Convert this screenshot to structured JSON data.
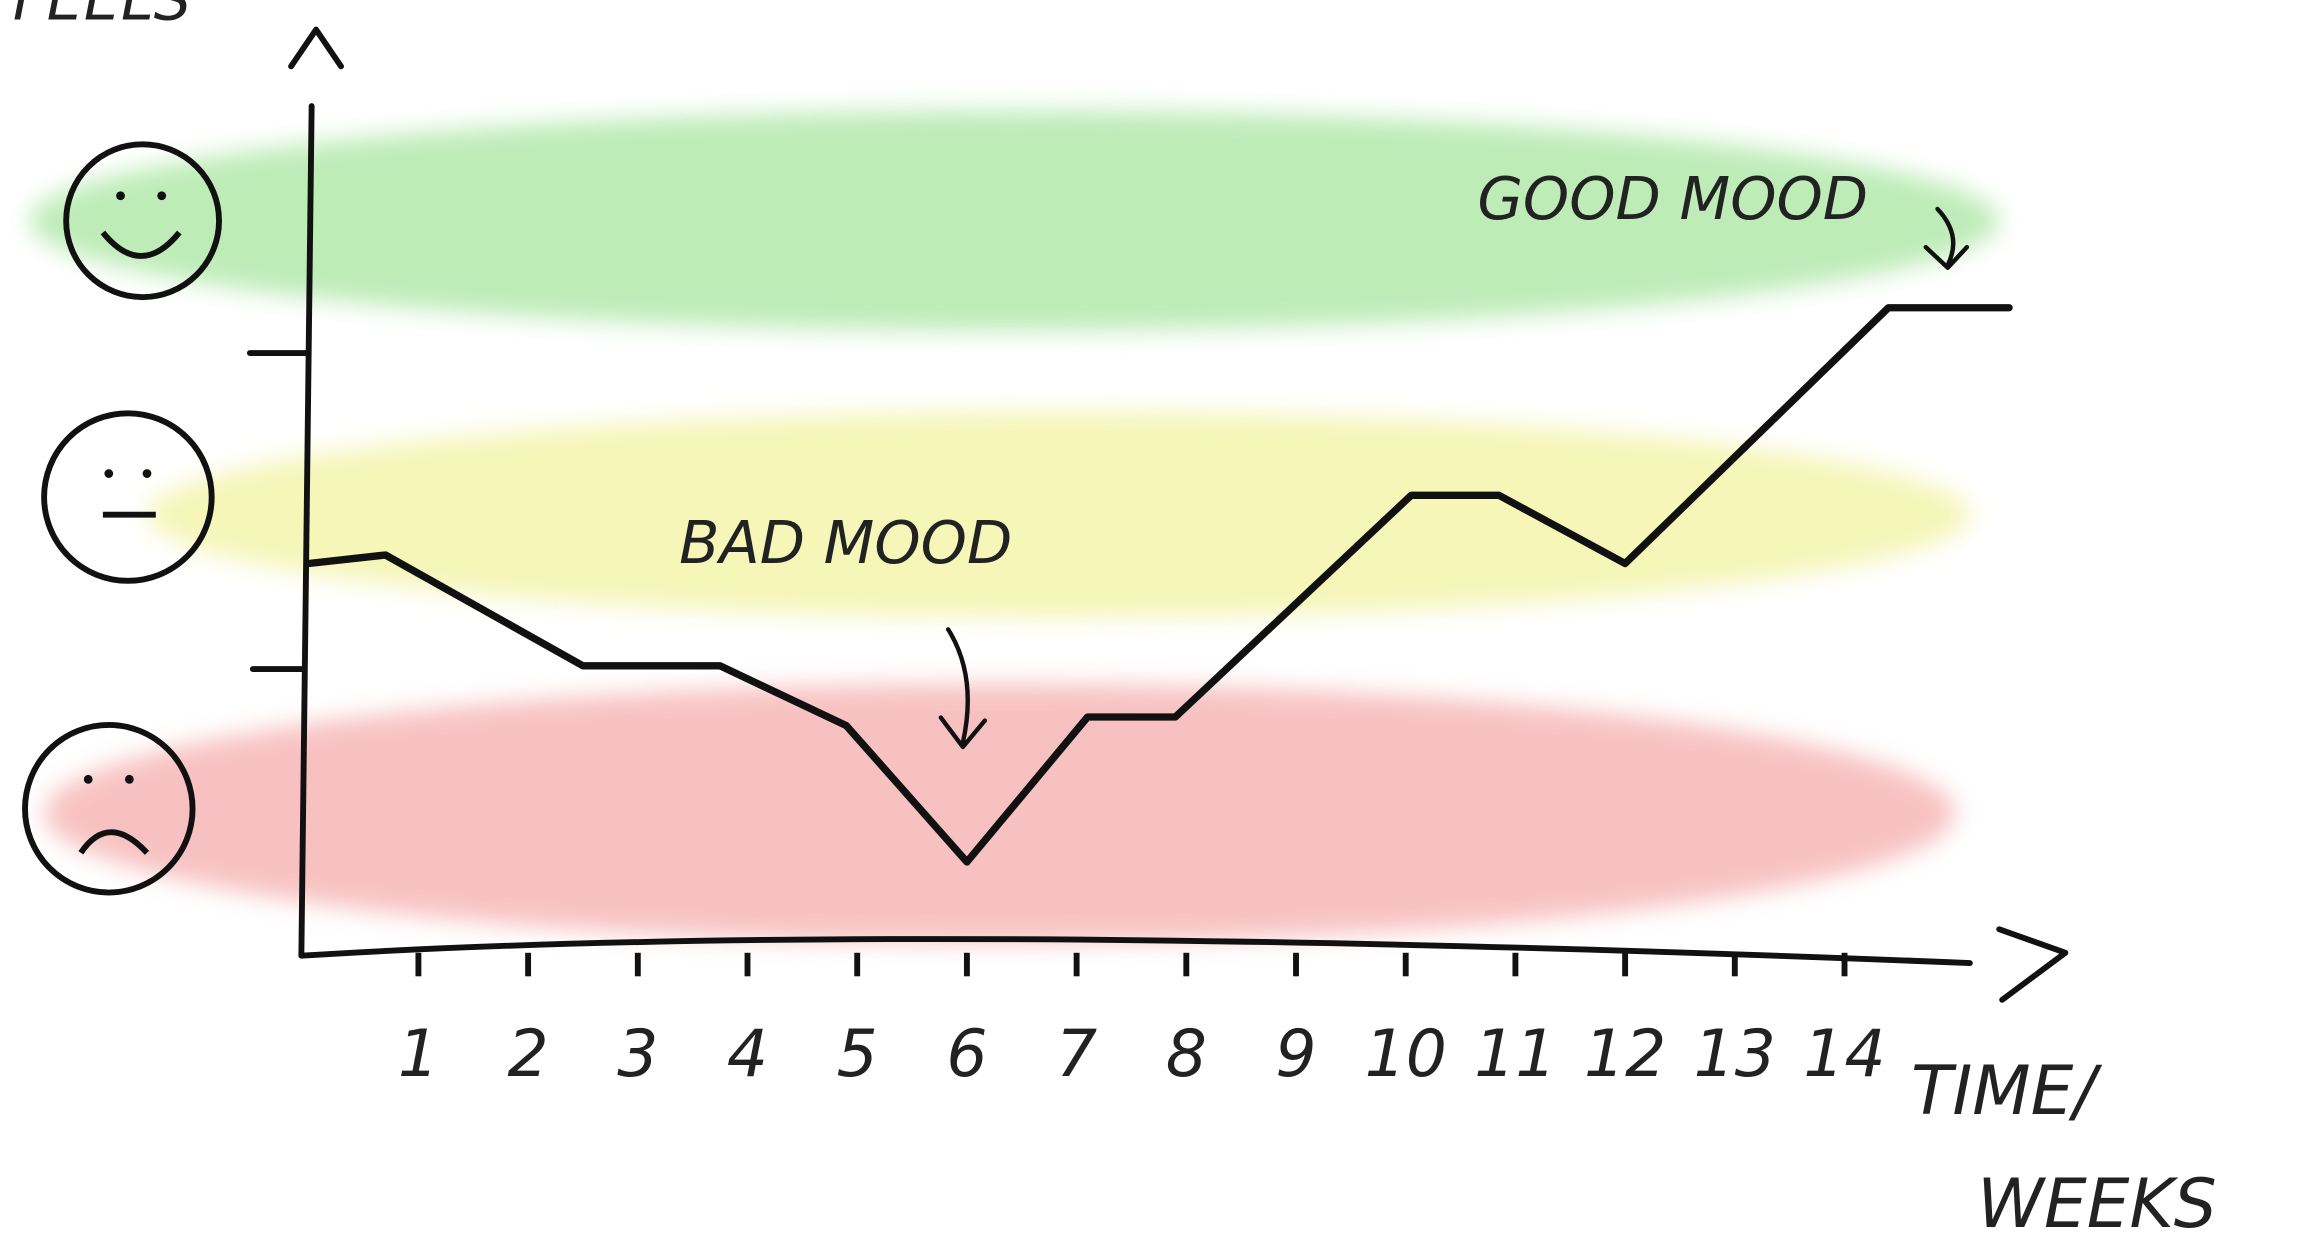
{
  "chart_data": {
    "type": "line",
    "ylabel": "FEELS",
    "xlabel": [
      "TIME/",
      "WEEKS"
    ],
    "annotations": [
      "BAD MOOD",
      "GOOD MOOD"
    ],
    "x": [
      0,
      0.7,
      2.5,
      3.75,
      4.9,
      6.0,
      7.1,
      7.9,
      10.05,
      10.85,
      12.0,
      14.4,
      15.5
    ],
    "series": [
      {
        "color": "#111111",
        "values": [
          4.6,
          4.7,
          3.4,
          3.4,
          2.7,
          1.1,
          2.8,
          2.8,
          5.4,
          5.4,
          4.6,
          7.6,
          7.6
        ]
      }
    ],
    "xlim": [
      0,
      16
    ],
    "ylim": [
      0,
      10
    ],
    "xticks": [
      1,
      2,
      3,
      4,
      5,
      6,
      7,
      8,
      9,
      10,
      11,
      12,
      13,
      14
    ]
  }
}
